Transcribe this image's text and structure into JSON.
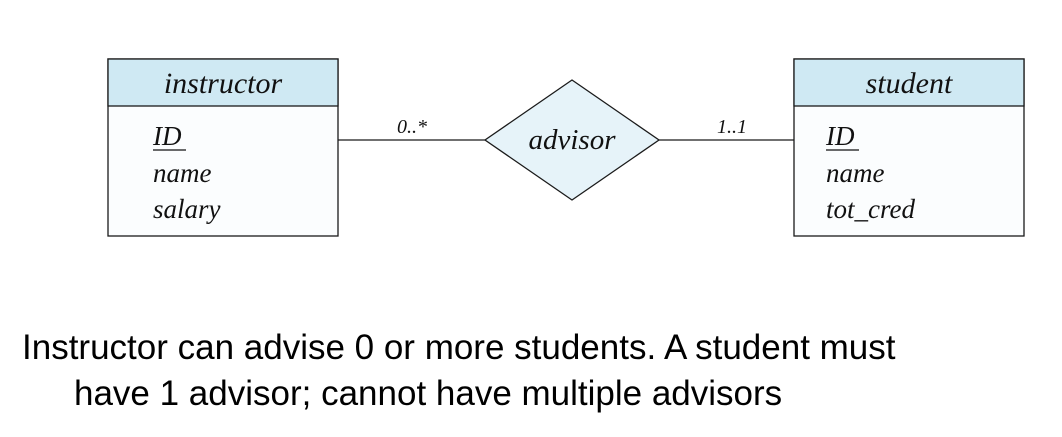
{
  "entities": {
    "instructor": {
      "title": "instructor",
      "attributes": [
        "ID",
        "name",
        "salary"
      ],
      "primary_key": "ID"
    },
    "student": {
      "title": "student",
      "attributes": [
        "ID",
        "name",
        "tot_cred"
      ],
      "primary_key": "ID"
    }
  },
  "relationship": {
    "name": "advisor",
    "left_cardinality": "0..*",
    "right_cardinality": "1..1"
  },
  "caption": {
    "line1": "Instructor can advise 0 or more students.  A student must",
    "line2": "have 1 advisor; cannot have multiple advisors"
  },
  "colors": {
    "entity_header": "#cfe9f3",
    "relationship_fill": "#e6f3f9",
    "stroke": "#1a1a1a"
  }
}
